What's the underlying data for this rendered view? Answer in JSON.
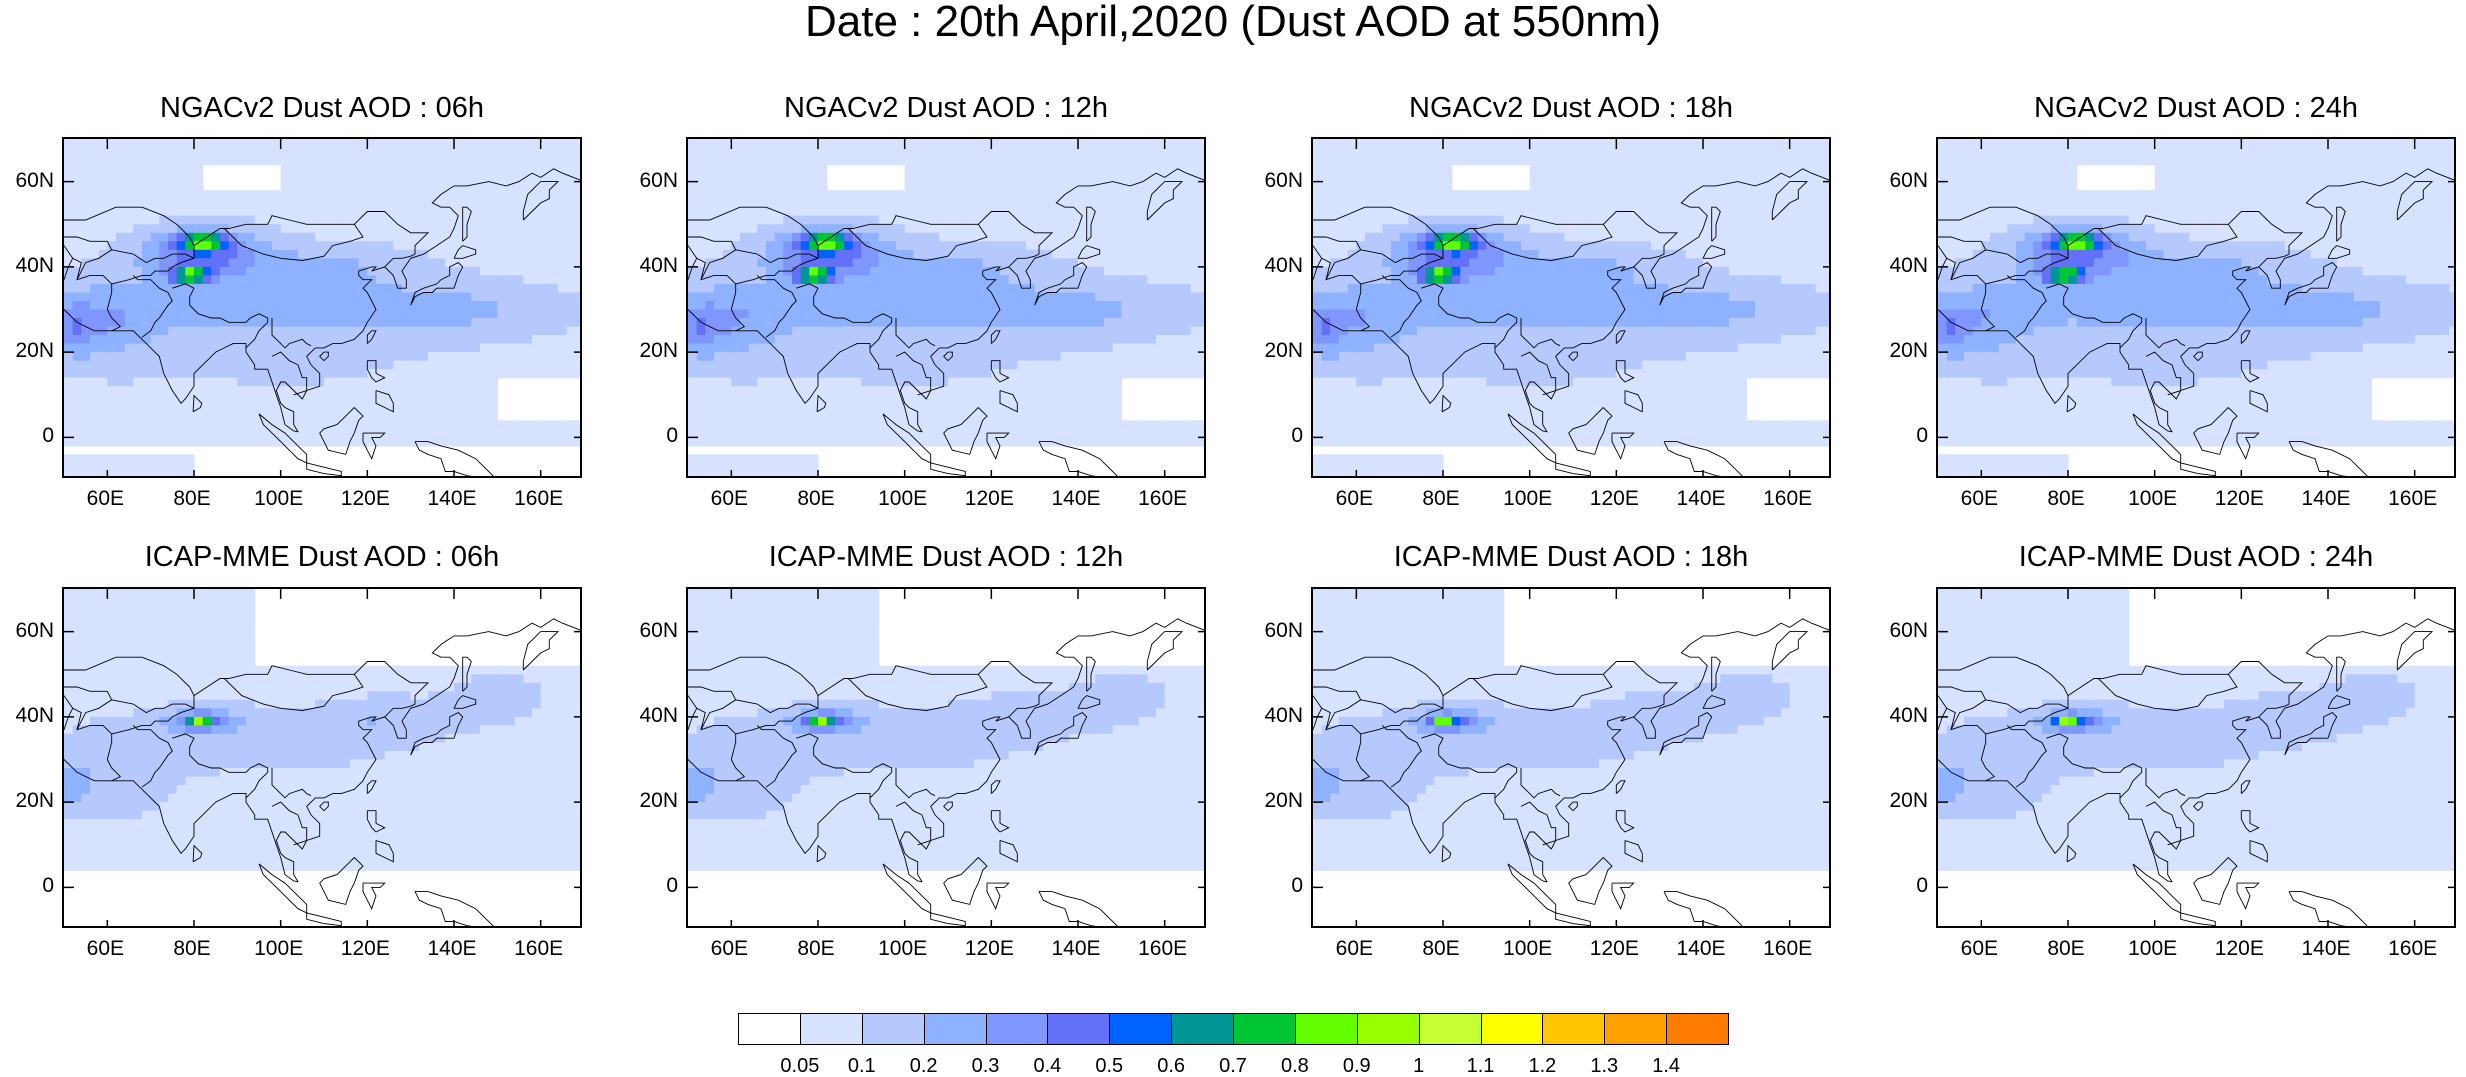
{
  "title": "Date : 20th April,2020 (Dust AOD at 550nm)",
  "panels": [
    {
      "title": "NGACv2 Dust AOD : 06h",
      "model": "ngac",
      "variant": 0
    },
    {
      "title": "NGACv2 Dust AOD : 12h",
      "model": "ngac",
      "variant": 1
    },
    {
      "title": "NGACv2 Dust AOD : 18h",
      "model": "ngac",
      "variant": 2
    },
    {
      "title": "NGACv2 Dust AOD : 24h",
      "model": "ngac",
      "variant": 3
    },
    {
      "title": "ICAP-MME Dust AOD : 06h",
      "model": "icap",
      "variant": 0
    },
    {
      "title": "ICAP-MME Dust AOD : 12h",
      "model": "icap",
      "variant": 1
    },
    {
      "title": "ICAP-MME Dust AOD : 18h",
      "model": "icap",
      "variant": 2
    },
    {
      "title": "ICAP-MME Dust AOD : 24h",
      "model": "icap",
      "variant": 3
    }
  ],
  "map": {
    "lon_range": [
      50,
      170
    ],
    "lat_range": [
      -10,
      70
    ],
    "lon_ticks": [
      60,
      80,
      100,
      120,
      140,
      160
    ],
    "lon_tick_labels": [
      "60E",
      "80E",
      "100E",
      "120E",
      "140E",
      "160E"
    ],
    "lat_ticks": [
      0,
      20,
      40,
      60
    ],
    "lat_tick_labels": [
      "0",
      "20N",
      "40N",
      "60N"
    ]
  },
  "colorbar": {
    "labels": [
      "0.05",
      "0.1",
      "0.2",
      "0.3",
      "0.4",
      "0.5",
      "0.6",
      "0.7",
      "0.8",
      "0.9",
      "1",
      "1.1",
      "1.2",
      "1.3",
      "1.4"
    ],
    "colors": [
      "#ffffff",
      "#d6e2ff",
      "#b5c9ff",
      "#8eb2ff",
      "#7f96ff",
      "#6370f8",
      "#0063ff",
      "#009696",
      "#00c633",
      "#63ff00",
      "#96ff00",
      "#c6ff33",
      "#ffff00",
      "#ffc600",
      "#ffa000",
      "#ff7c00",
      "#ff1900"
    ]
  }
}
